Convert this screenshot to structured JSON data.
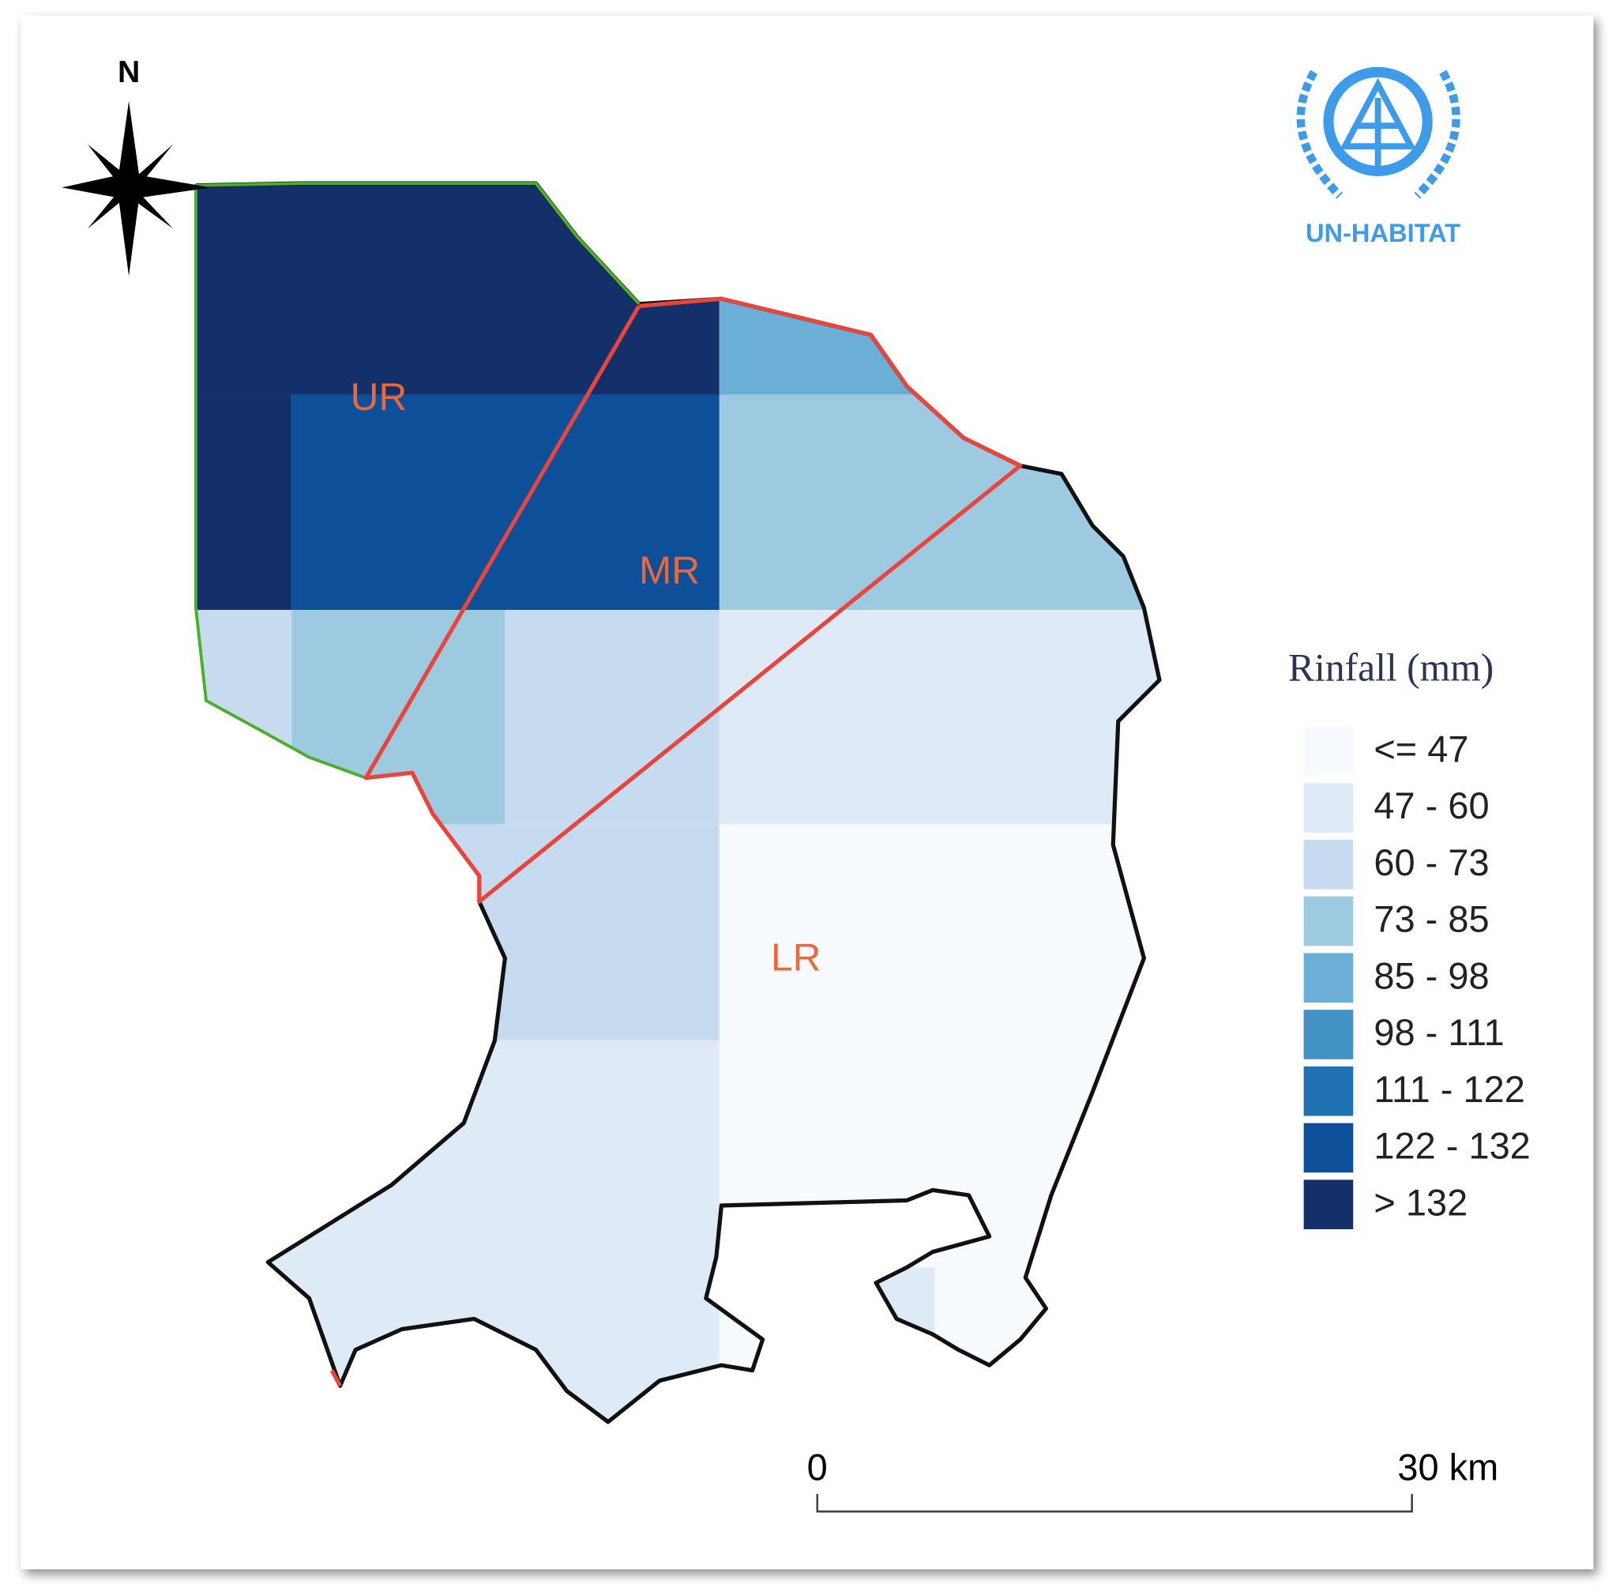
{
  "map": {
    "north": "N",
    "logo_text": "UN-HABITAT",
    "regions": [
      "UR",
      "MR",
      "LR"
    ],
    "legend": {
      "title": "Rinfall (mm)",
      "items": [
        {
          "label": "<= 47",
          "color": "#f7fbff"
        },
        {
          "label": "47 - 60",
          "color": "#deebf7"
        },
        {
          "label": "60 - 73",
          "color": "#c6dbef"
        },
        {
          "label": "73 - 85",
          "color": "#9ecae1"
        },
        {
          "label": "85 - 98",
          "color": "#6baed6"
        },
        {
          "label": "98 - 111",
          "color": "#4292c6"
        },
        {
          "label": "111 - 122",
          "color": "#2171b5"
        },
        {
          "label": "122 - 132",
          "color": "#0d4f99"
        },
        {
          "label": "> 132",
          "color": "#14306a"
        }
      ]
    },
    "scale": {
      "start": "0",
      "end": "30 km"
    }
  }
}
